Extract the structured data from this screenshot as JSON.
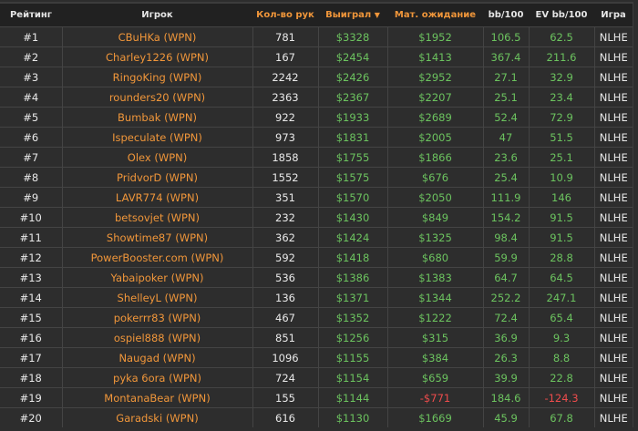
{
  "colors": {
    "accent": "#f0963a",
    "positive": "#6cc35f",
    "negative": "#ee4c4c"
  },
  "headers": {
    "rank": "Рейтинг",
    "player": "Игрок",
    "hands": "Кол-во рук",
    "won": "Выиграл",
    "won_sort_icon": "caret-down-icon",
    "ev": "Мат. ожидание",
    "bb": "bb/100",
    "evbb": "EV bb/100",
    "game": "Игра"
  },
  "rows": [
    {
      "rank": "#1",
      "player": "CBuHKa (WPN)",
      "hands": "781",
      "won": "$3328",
      "ev": "$1952",
      "bb": "106.5",
      "evbb": "62.5",
      "game": "NLHE"
    },
    {
      "rank": "#2",
      "player": "Charley1226 (WPN)",
      "hands": "167",
      "won": "$2454",
      "ev": "$1413",
      "bb": "367.4",
      "evbb": "211.6",
      "game": "NLHE"
    },
    {
      "rank": "#3",
      "player": "RingoKing (WPN)",
      "hands": "2242",
      "won": "$2426",
      "ev": "$2952",
      "bb": "27.1",
      "evbb": "32.9",
      "game": "NLHE"
    },
    {
      "rank": "#4",
      "player": "rounders20 (WPN)",
      "hands": "2363",
      "won": "$2367",
      "ev": "$2207",
      "bb": "25.1",
      "evbb": "23.4",
      "game": "NLHE"
    },
    {
      "rank": "#5",
      "player": "Bumbak (WPN)",
      "hands": "922",
      "won": "$1933",
      "ev": "$2689",
      "bb": "52.4",
      "evbb": "72.9",
      "game": "NLHE"
    },
    {
      "rank": "#6",
      "player": "Ispeculate (WPN)",
      "hands": "973",
      "won": "$1831",
      "ev": "$2005",
      "bb": "47",
      "evbb": "51.5",
      "game": "NLHE"
    },
    {
      "rank": "#7",
      "player": "Olex (WPN)",
      "hands": "1858",
      "won": "$1755",
      "ev": "$1866",
      "bb": "23.6",
      "evbb": "25.1",
      "game": "NLHE"
    },
    {
      "rank": "#8",
      "player": "PridvorD (WPN)",
      "hands": "1552",
      "won": "$1575",
      "ev": "$676",
      "bb": "25.4",
      "evbb": "10.9",
      "game": "NLHE"
    },
    {
      "rank": "#9",
      "player": "LAVR774 (WPN)",
      "hands": "351",
      "won": "$1570",
      "ev": "$2050",
      "bb": "111.9",
      "evbb": "146",
      "game": "NLHE"
    },
    {
      "rank": "#10",
      "player": "betsovjet (WPN)",
      "hands": "232",
      "won": "$1430",
      "ev": "$849",
      "bb": "154.2",
      "evbb": "91.5",
      "game": "NLHE"
    },
    {
      "rank": "#11",
      "player": "Showtime87 (WPN)",
      "hands": "362",
      "won": "$1424",
      "ev": "$1325",
      "bb": "98.4",
      "evbb": "91.5",
      "game": "NLHE"
    },
    {
      "rank": "#12",
      "player": "PowerBooster.com (WPN)",
      "hands": "592",
      "won": "$1418",
      "ev": "$680",
      "bb": "59.9",
      "evbb": "28.8",
      "game": "NLHE"
    },
    {
      "rank": "#13",
      "player": "Yabaipoker (WPN)",
      "hands": "536",
      "won": "$1386",
      "ev": "$1383",
      "bb": "64.7",
      "evbb": "64.5",
      "game": "NLHE"
    },
    {
      "rank": "#14",
      "player": "ShelleyL (WPN)",
      "hands": "136",
      "won": "$1371",
      "ev": "$1344",
      "bb": "252.2",
      "evbb": "247.1",
      "game": "NLHE"
    },
    {
      "rank": "#15",
      "player": "pokerrr83 (WPN)",
      "hands": "467",
      "won": "$1352",
      "ev": "$1222",
      "bb": "72.4",
      "evbb": "65.4",
      "game": "NLHE"
    },
    {
      "rank": "#16",
      "player": "ospiel888 (WPN)",
      "hands": "851",
      "won": "$1256",
      "ev": "$315",
      "bb": "36.9",
      "evbb": "9.3",
      "game": "NLHE"
    },
    {
      "rank": "#17",
      "player": "Naugad (WPN)",
      "hands": "1096",
      "won": "$1155",
      "ev": "$384",
      "bb": "26.3",
      "evbb": "8.8",
      "game": "NLHE"
    },
    {
      "rank": "#18",
      "player": "pyka 6ora (WPN)",
      "hands": "724",
      "won": "$1154",
      "ev": "$659",
      "bb": "39.9",
      "evbb": "22.8",
      "game": "NLHE"
    },
    {
      "rank": "#19",
      "player": "MontanaBear (WPN)",
      "hands": "155",
      "won": "$1144",
      "ev": "-$771",
      "bb": "184.6",
      "evbb": "-124.3",
      "game": "NLHE"
    },
    {
      "rank": "#20",
      "player": "Garadski (WPN)",
      "hands": "616",
      "won": "$1130",
      "ev": "$1669",
      "bb": "45.9",
      "evbb": "67.8",
      "game": "NLHE"
    }
  ]
}
